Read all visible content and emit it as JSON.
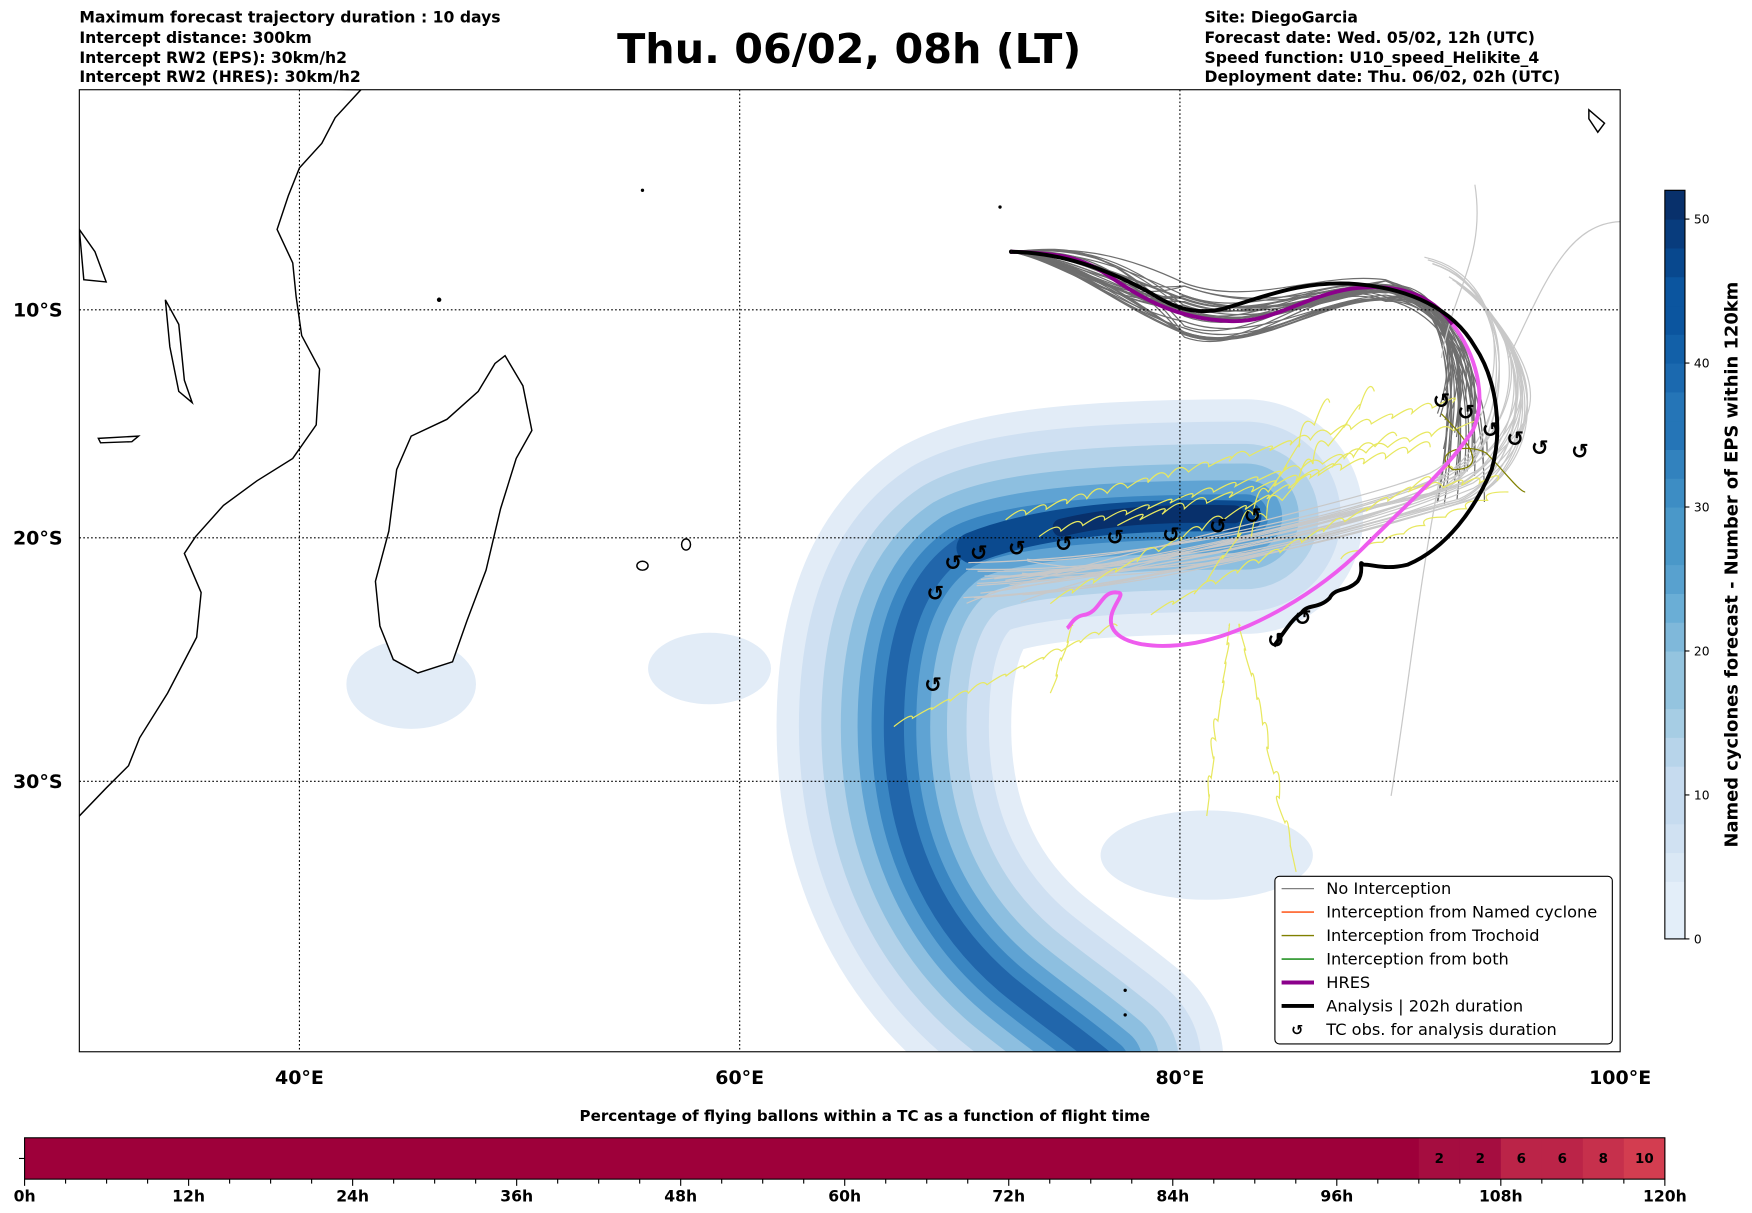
{
  "header": {
    "title": "Thu. 06/02, 08h (LT)",
    "left": [
      "Maximum forecast trajectory duration : 10 days",
      "Intercept distance: 300km",
      "Intercept RW2 (EPS):  30km/h2",
      "Intercept RW2 (HRES): 30km/h2"
    ],
    "right": [
      "Site: DiegoGarcia",
      "Forecast date: Wed. 05/02, 12h (UTC)",
      "Speed function: U10_speed_Helikite_4",
      "Deployment date: Thu. 06/02, 02h (UTC)"
    ]
  },
  "map": {
    "lon_ticks": [
      "40°E",
      "60°E",
      "80°E",
      "100°E"
    ],
    "lat_ticks": [
      "10°S",
      "20°S",
      "30°S"
    ],
    "tc_symbol": "↺"
  },
  "legend": {
    "items": [
      {
        "label": "No Interception",
        "color": "#808080"
      },
      {
        "label": "Interception from Named cyclone",
        "color": "#ff4500"
      },
      {
        "label": "Interception from Trochoid",
        "color": "#808000"
      },
      {
        "label": "Interception from both",
        "color": "#008000"
      },
      {
        "label": "HRES",
        "color": "#8b008b"
      },
      {
        "label": "Analysis | 202h duration",
        "color": "#000000"
      },
      {
        "label": "TC obs. for analysis duration",
        "color": "#000000"
      }
    ]
  },
  "colorbar": {
    "label": "Named cyclones forecast - Number of EPS within 120km",
    "ticks": [
      "0",
      "10",
      "20",
      "30",
      "40",
      "50"
    ],
    "max": 52
  },
  "time_bar": {
    "title": "Percentage of flying ballons within a TC as a function of flight time",
    "tick_labels": [
      "0h",
      "12h",
      "24h",
      "36h",
      "48h",
      "60h",
      "72h",
      "84h",
      "96h",
      "108h",
      "120h"
    ],
    "cells": [
      {
        "start_h": 0,
        "end_h": 102,
        "value": 0,
        "label": "",
        "color": "#9e003a"
      },
      {
        "start_h": 102,
        "end_h": 105,
        "value": 2,
        "label": "2",
        "color": "#a50d40"
      },
      {
        "start_h": 105,
        "end_h": 108,
        "value": 2,
        "label": "2",
        "color": "#a50d40"
      },
      {
        "start_h": 108,
        "end_h": 111,
        "value": 6,
        "label": "6",
        "color": "#bb2448"
      },
      {
        "start_h": 111,
        "end_h": 114,
        "value": 6,
        "label": "6",
        "color": "#bb2448"
      },
      {
        "start_h": 114,
        "end_h": 117,
        "value": 8,
        "label": "8",
        "color": "#c6304c"
      },
      {
        "start_h": 117,
        "end_h": 120,
        "value": 10,
        "label": "10",
        "color": "#d33d50"
      }
    ]
  }
}
